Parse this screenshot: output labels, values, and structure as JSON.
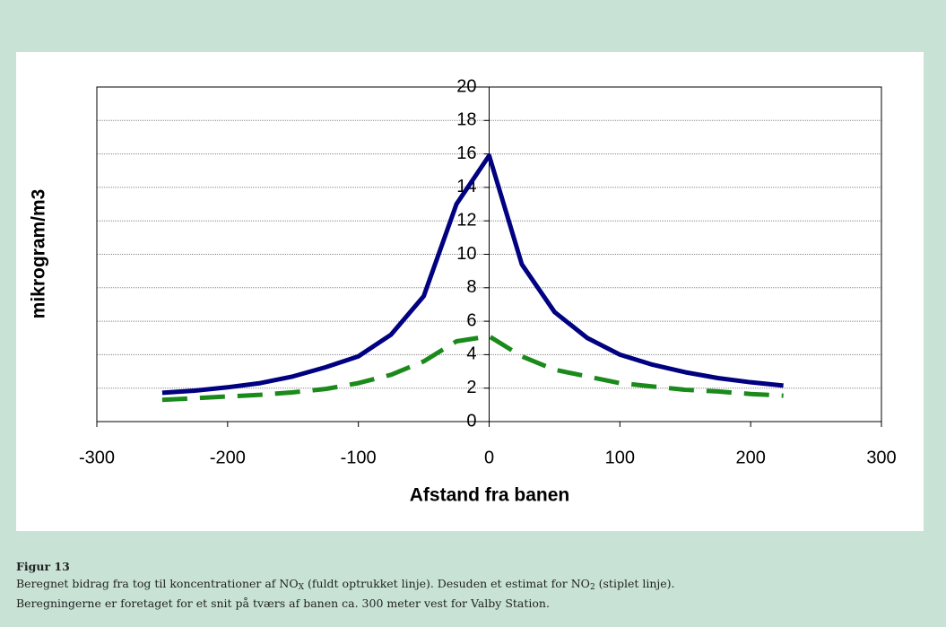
{
  "chart_data": {
    "type": "line",
    "x": [
      -250,
      -225,
      -200,
      -175,
      -150,
      -125,
      -100,
      -75,
      -50,
      -25,
      0,
      25,
      50,
      75,
      100,
      125,
      150,
      175,
      200,
      225
    ],
    "series": [
      {
        "color": "#000080",
        "dash": false,
        "values": [
          1.72,
          1.85,
          2.05,
          2.3,
          2.7,
          3.25,
          3.9,
          5.2,
          7.5,
          13.0,
          15.9,
          9.4,
          6.55,
          5.0,
          4.0,
          3.4,
          2.95,
          2.6,
          2.35,
          2.15
        ]
      },
      {
        "color": "#1a8a1a",
        "dash": true,
        "values": [
          1.3,
          1.4,
          1.5,
          1.6,
          1.75,
          1.95,
          2.3,
          2.8,
          3.6,
          4.8,
          5.1,
          3.9,
          3.1,
          2.7,
          2.3,
          2.1,
          1.9,
          1.8,
          1.65,
          1.55
        ]
      }
    ],
    "xlabel": "Afstand fra banen",
    "ylabel": "mikrogram/m3",
    "xlim": [
      -300,
      300
    ],
    "xticks": [
      -300,
      -200,
      -100,
      0,
      100,
      200,
      300
    ],
    "ylim": [
      0,
      20
    ],
    "yticks": [
      0,
      2,
      4,
      6,
      8,
      10,
      12,
      14,
      16,
      18,
      20
    ],
    "grid": true
  },
  "figure": {
    "label": "Figur 13",
    "caption": [
      [
        "Beregnet bidrag fra tog til koncentrationer af NO",
        "X",
        " (fuldt optrukket linje). Desuden et estimat for NO",
        "2",
        " (stiplet linje)."
      ],
      [
        "Beregningerne er foretaget for et snit på tværs af banen ca. 300 meter vest for Valby Station."
      ]
    ]
  }
}
